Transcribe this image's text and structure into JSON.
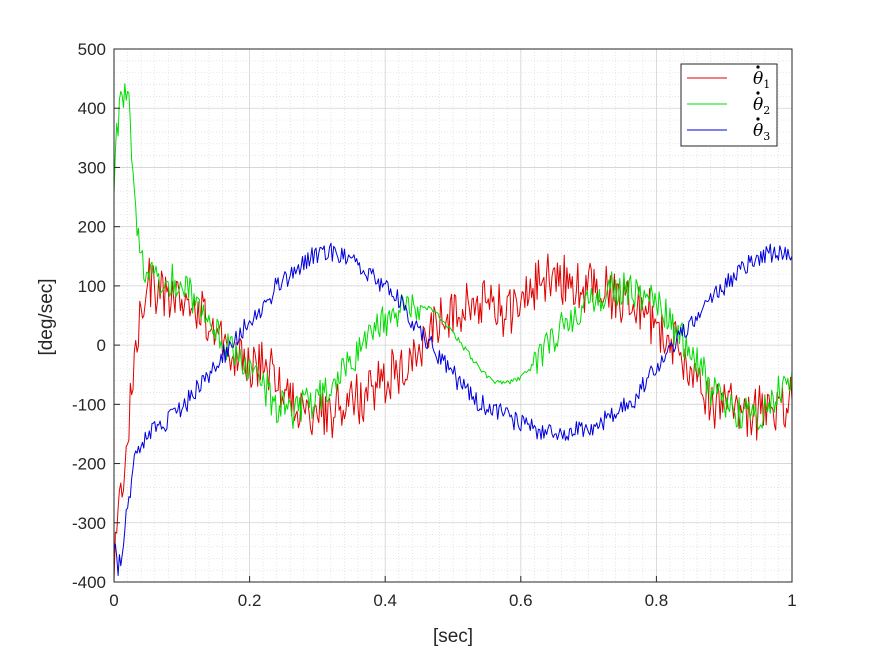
{
  "chart_data": {
    "type": "line",
    "xlabel": "[sec]",
    "ylabel": "[deg/sec]",
    "xlim": [
      0,
      1
    ],
    "ylim": [
      -400,
      500
    ],
    "xticks": [
      "0",
      "0.2",
      "0.4",
      "0.6",
      "0.8",
      "1"
    ],
    "xtick_values": [
      0,
      0.2,
      0.4,
      0.6,
      0.8,
      1
    ],
    "yticks": [
      "-400",
      "-300",
      "-200",
      "-100",
      "0",
      "100",
      "200",
      "300",
      "400",
      "500"
    ],
    "ytick_values": [
      -400,
      -300,
      -200,
      -100,
      0,
      100,
      200,
      300,
      400,
      500
    ],
    "grid": true,
    "minor_grid": true,
    "legend_position": "top-right",
    "series": [
      {
        "name": "θ̇₁",
        "symbol": "θ",
        "subscript": "1",
        "color": "#e00000",
        "x": [
          0,
          0.01,
          0.02,
          0.03,
          0.04,
          0.05,
          0.06,
          0.08,
          0.1,
          0.12,
          0.14,
          0.16,
          0.18,
          0.2,
          0.22,
          0.24,
          0.26,
          0.28,
          0.3,
          0.32,
          0.34,
          0.36,
          0.38,
          0.4,
          0.42,
          0.44,
          0.46,
          0.48,
          0.5,
          0.52,
          0.54,
          0.56,
          0.58,
          0.6,
          0.62,
          0.64,
          0.66,
          0.68,
          0.7,
          0.72,
          0.74,
          0.76,
          0.78,
          0.8,
          0.82,
          0.84,
          0.86,
          0.88,
          0.9,
          0.92,
          0.94,
          0.96,
          0.98,
          1
        ],
        "y": [
          -380,
          -250,
          -150,
          -30,
          80,
          110,
          95,
          70,
          85,
          60,
          40,
          10,
          -20,
          -35,
          -30,
          -60,
          -90,
          -120,
          -110,
          -110,
          -100,
          -90,
          -70,
          -60,
          -40,
          -20,
          10,
          40,
          60,
          70,
          80,
          60,
          50,
          70,
          100,
          120,
          110,
          90,
          100,
          95,
          80,
          75,
          60,
          40,
          10,
          -30,
          -60,
          -90,
          -100,
          -100,
          -120,
          -100,
          -120,
          -80
        ]
      },
      {
        "name": "θ̇₂",
        "symbol": "θ",
        "subscript": "2",
        "color": "#00dd00",
        "x": [
          0,
          0.005,
          0.01,
          0.015,
          0.02,
          0.025,
          0.03,
          0.035,
          0.04,
          0.05,
          0.06,
          0.08,
          0.1,
          0.12,
          0.14,
          0.16,
          0.18,
          0.2,
          0.22,
          0.24,
          0.26,
          0.28,
          0.3,
          0.32,
          0.34,
          0.36,
          0.38,
          0.4,
          0.42,
          0.44,
          0.46,
          0.48,
          0.5,
          0.52,
          0.54,
          0.56,
          0.58,
          0.6,
          0.62,
          0.64,
          0.66,
          0.68,
          0.7,
          0.72,
          0.74,
          0.76,
          0.78,
          0.8,
          0.82,
          0.84,
          0.86,
          0.88,
          0.9,
          0.92,
          0.94,
          0.96,
          0.98,
          1
        ],
        "y": [
          250,
          380,
          400,
          420,
          430,
          360,
          250,
          180,
          140,
          130,
          120,
          110,
          100,
          80,
          40,
          10,
          -20,
          -45,
          -70,
          -100,
          -110,
          -100,
          -90,
          -70,
          -40,
          -10,
          20,
          40,
          55,
          65,
          65,
          50,
          20,
          -10,
          -40,
          -60,
          -65,
          -55,
          -30,
          0,
          30,
          55,
          75,
          85,
          95,
          90,
          80,
          70,
          40,
          10,
          -30,
          -70,
          -100,
          -115,
          -120,
          -110,
          -80,
          -40
        ]
      },
      {
        "name": "θ̇₃",
        "symbol": "θ",
        "subscript": "3",
        "color": "#0000dd",
        "x": [
          0,
          0.005,
          0.01,
          0.02,
          0.03,
          0.04,
          0.05,
          0.06,
          0.08,
          0.1,
          0.12,
          0.14,
          0.16,
          0.18,
          0.2,
          0.22,
          0.24,
          0.26,
          0.28,
          0.3,
          0.32,
          0.34,
          0.36,
          0.38,
          0.4,
          0.42,
          0.44,
          0.46,
          0.48,
          0.5,
          0.52,
          0.54,
          0.56,
          0.58,
          0.6,
          0.62,
          0.64,
          0.66,
          0.68,
          0.7,
          0.72,
          0.74,
          0.76,
          0.78,
          0.8,
          0.82,
          0.84,
          0.86,
          0.88,
          0.9,
          0.92,
          0.94,
          0.96,
          0.98,
          1
        ],
        "y": [
          -330,
          -380,
          -360,
          -280,
          -200,
          -170,
          -150,
          -140,
          -130,
          -110,
          -80,
          -50,
          -20,
          10,
          40,
          70,
          100,
          120,
          140,
          150,
          155,
          150,
          140,
          120,
          100,
          75,
          40,
          10,
          -20,
          -50,
          -80,
          -100,
          -110,
          -120,
          -130,
          -140,
          -145,
          -150,
          -145,
          -140,
          -130,
          -115,
          -100,
          -70,
          -40,
          -10,
          20,
          50,
          80,
          100,
          120,
          140,
          150,
          155,
          150
        ]
      }
    ]
  }
}
